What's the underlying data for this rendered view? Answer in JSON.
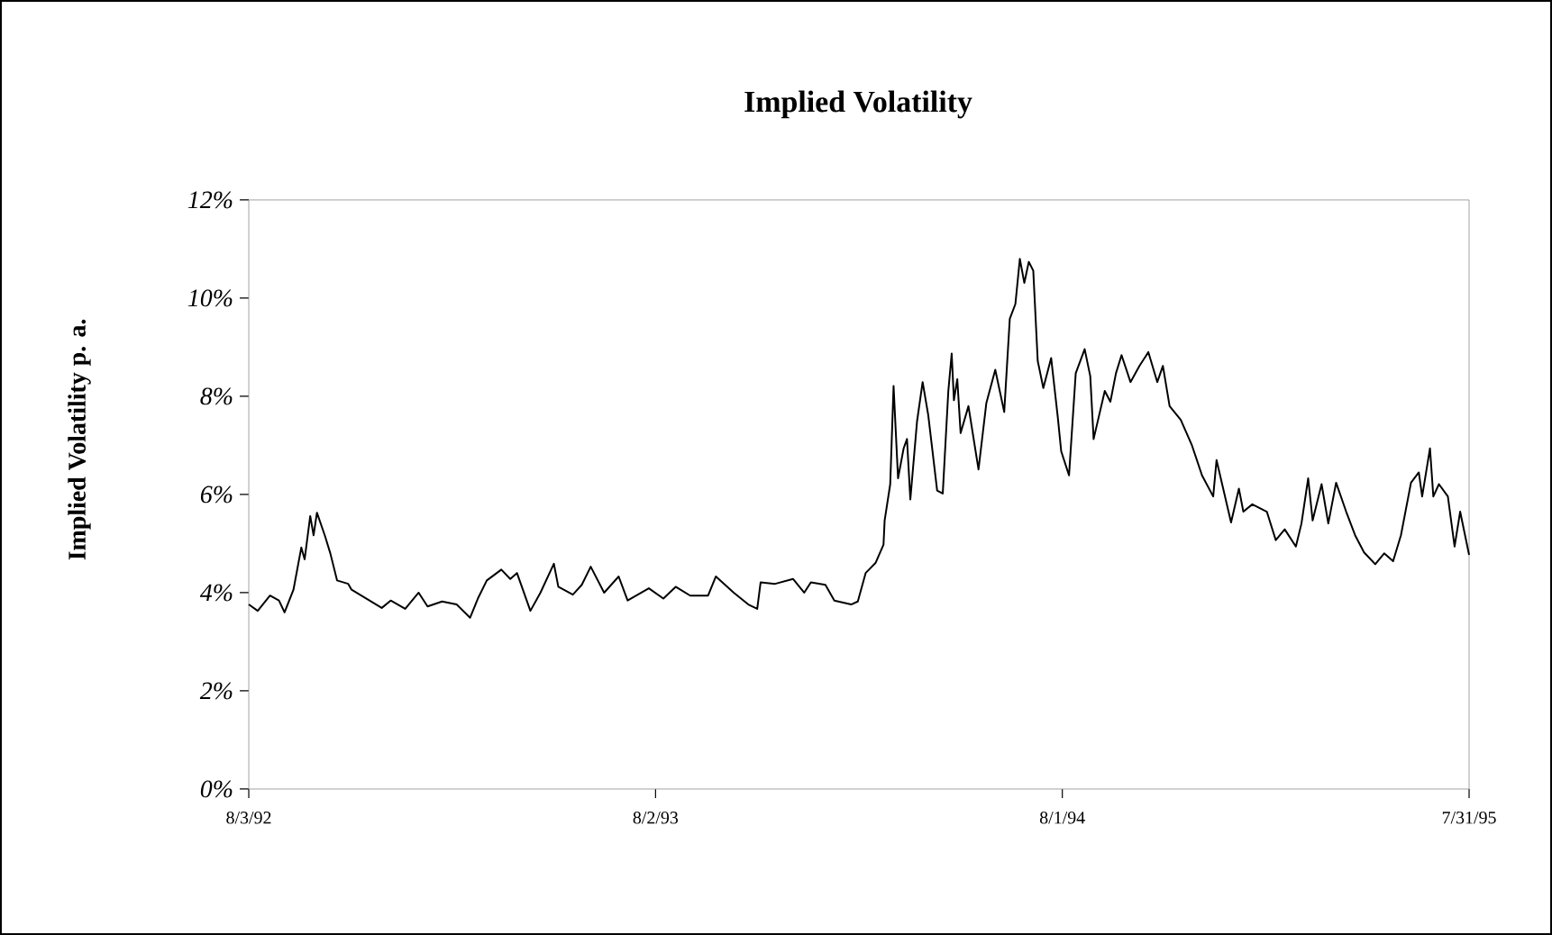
{
  "chart_data": {
    "type": "line",
    "title": "Implied Volatility",
    "ylabel": "Implied Volatility p. a.",
    "xlim": [
      "1992-08-03",
      "1995-07-31"
    ],
    "xticks": [
      {
        "value": "1992-08-03",
        "label": "8/3/92"
      },
      {
        "value": "1993-08-02",
        "label": "8/2/93"
      },
      {
        "value": "1994-08-01",
        "label": "8/1/94"
      },
      {
        "value": "1995-07-31",
        "label": "7/31/95"
      }
    ],
    "ylim": [
      0,
      12
    ],
    "yticks": [
      {
        "value": 0,
        "label": "0%"
      },
      {
        "value": 2,
        "label": "2%"
      },
      {
        "value": 4,
        "label": "4%"
      },
      {
        "value": 6,
        "label": "6%"
      },
      {
        "value": 8,
        "label": "8%"
      },
      {
        "value": 10,
        "label": "10%"
      },
      {
        "value": 12,
        "label": "12%"
      }
    ],
    "x": [
      "1992-08-03",
      "1992-08-11",
      "1992-08-22",
      "1992-08-30",
      "1992-09-04",
      "1992-09-12",
      "1992-09-19",
      "1992-09-22",
      "1992-09-27",
      "1992-09-30",
      "1992-10-03",
      "1992-10-10",
      "1992-10-15",
      "1992-10-21",
      "1992-10-31",
      "1992-11-03",
      "1992-11-30",
      "1992-12-08",
      "1992-12-21",
      "1993-01-02",
      "1993-01-10",
      "1993-01-23",
      "1993-02-05",
      "1993-02-17",
      "1993-02-24",
      "1993-03-04",
      "1993-03-17",
      "1993-03-25",
      "1993-03-31",
      "1993-04-12",
      "1993-04-21",
      "1993-05-03",
      "1993-05-07",
      "1993-05-20",
      "1993-05-28",
      "1993-06-05",
      "1993-06-17",
      "1993-06-30",
      "1993-07-08",
      "1993-07-27",
      "1993-08-09",
      "1993-08-20",
      "1993-09-02",
      "1993-09-18",
      "1993-09-25",
      "1993-10-11",
      "1993-10-24",
      "1993-11-01",
      "1993-11-04",
      "1993-11-17",
      "1993-12-03",
      "1993-12-13",
      "1993-12-19",
      "1994-01-01",
      "1994-01-09",
      "1994-01-24",
      "1994-01-30",
      "1994-02-06",
      "1994-02-15",
      "1994-02-22",
      "1994-02-23",
      "1994-02-28",
      "1994-03-03",
      "1994-03-07",
      "1994-03-12",
      "1994-03-15",
      "1994-03-18",
      "1994-03-24",
      "1994-03-29",
      "1994-04-03",
      "1994-04-11",
      "1994-04-16",
      "1994-04-21",
      "1994-04-24",
      "1994-04-26",
      "1994-04-29",
      "1994-05-02",
      "1994-05-09",
      "1994-05-18",
      "1994-05-25",
      "1994-06-02",
      "1994-06-10",
      "1994-06-15",
      "1994-06-20",
      "1994-06-24",
      "1994-06-28",
      "1994-07-02",
      "1994-07-06",
      "1994-07-10",
      "1994-07-15",
      "1994-07-22",
      "1994-07-28",
      "1994-07-31",
      "1994-08-07",
      "1994-08-13",
      "1994-08-21",
      "1994-08-26",
      "1994-08-29",
      "1994-09-08",
      "1994-09-13",
      "1994-09-18",
      "1994-09-23",
      "1994-10-01",
      "1994-10-09",
      "1994-10-17",
      "1994-10-25",
      "1994-10-30",
      "1994-11-05",
      "1994-11-15",
      "1994-11-25",
      "1994-12-04",
      "1994-12-14",
      "1994-12-17",
      "1994-12-30",
      "1995-01-06",
      "1995-01-10",
      "1995-01-18",
      "1995-01-31",
      "1995-02-08",
      "1995-02-16",
      "1995-02-26",
      "1995-03-03",
      "1995-03-09",
      "1995-03-13",
      "1995-03-21",
      "1995-03-27",
      "1995-04-03",
      "1995-04-12",
      "1995-04-20",
      "1995-04-28",
      "1995-05-08",
      "1995-05-16",
      "1995-05-24",
      "1995-05-31",
      "1995-06-09",
      "1995-06-16",
      "1995-06-19",
      "1995-06-26",
      "1995-06-29",
      "1995-07-04",
      "1995-07-12",
      "1995-07-18",
      "1995-07-23",
      "1995-07-31"
    ],
    "series": [
      {
        "color": "#000000",
        "values": [
          3.76,
          3.63,
          3.94,
          3.84,
          3.6,
          4.06,
          4.92,
          4.68,
          5.56,
          5.17,
          5.63,
          5.17,
          4.8,
          4.25,
          4.18,
          4.06,
          3.69,
          3.84,
          3.67,
          4.0,
          3.72,
          3.82,
          3.76,
          3.49,
          3.88,
          4.25,
          4.47,
          4.28,
          4.4,
          3.63,
          4.0,
          4.59,
          4.12,
          3.96,
          4.16,
          4.53,
          4.0,
          4.33,
          3.84,
          4.09,
          3.88,
          4.12,
          3.94,
          3.94,
          4.33,
          4.0,
          3.76,
          3.67,
          4.21,
          4.18,
          4.28,
          4.0,
          4.21,
          4.16,
          3.84,
          3.76,
          3.82,
          4.4,
          4.61,
          4.98,
          5.47,
          6.21,
          8.21,
          6.33,
          6.94,
          7.13,
          5.9,
          7.49,
          8.29,
          7.62,
          6.08,
          6.02,
          8.11,
          8.87,
          7.92,
          8.35,
          7.25,
          7.8,
          6.51,
          7.86,
          8.54,
          7.68,
          9.58,
          9.88,
          10.8,
          10.31,
          10.74,
          10.56,
          8.72,
          8.17,
          8.78,
          7.56,
          6.88,
          6.39,
          8.47,
          8.96,
          8.41,
          7.13,
          8.11,
          7.89,
          8.47,
          8.84,
          8.29,
          8.62,
          8.9,
          8.29,
          8.62,
          7.8,
          7.52,
          7.0,
          6.39,
          5.96,
          6.7,
          5.43,
          6.12,
          5.65,
          5.8,
          5.65,
          5.07,
          5.29,
          4.94,
          5.41,
          6.33,
          5.47,
          6.21,
          5.41,
          6.24,
          5.65,
          5.17,
          4.82,
          4.58,
          4.8,
          4.64,
          5.17,
          6.24,
          6.45,
          5.96,
          6.94,
          5.96,
          6.21,
          5.96,
          4.94,
          5.65,
          4.77
        ]
      }
    ]
  }
}
